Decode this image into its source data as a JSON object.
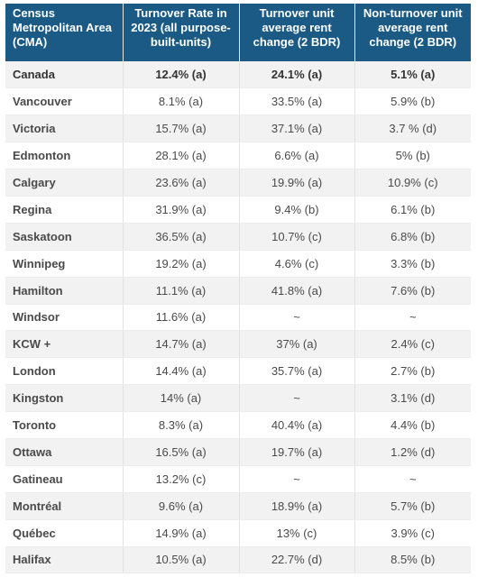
{
  "table": {
    "headers": [
      "Census Metropolitan Area (CMA)",
      "Turnover Rate in 2023 (all purpose-built-units)",
      "Turnover unit average rent change (2 BDR)",
      "Non-turnover unit average rent change (2 BDR)"
    ],
    "rows": [
      [
        "Canada",
        "12.4% (a)",
        "24.1% (a)",
        "5.1% (a)"
      ],
      [
        "Vancouver",
        "8.1% (a)",
        "33.5% (a)",
        "5.9% (b)"
      ],
      [
        "Victoria",
        "15.7% (a)",
        "37.1% (a)",
        "3.7 % (d)"
      ],
      [
        "Edmonton",
        "28.1% (a)",
        "6.6% (a)",
        "5% (b)"
      ],
      [
        "Calgary",
        "23.6% (a)",
        "19.9% (a)",
        "10.9% (c)"
      ],
      [
        "Regina",
        "31.9% (a)",
        "9.4% (b)",
        "6.1% (b)"
      ],
      [
        "Saskatoon",
        "36.5% (a)",
        "10.7% (c)",
        "6.8% (b)"
      ],
      [
        "Winnipeg",
        "19.2% (a)",
        "4.6% (c)",
        "3.3% (b)"
      ],
      [
        "Hamilton",
        "11.1% (a)",
        "41.8% (a)",
        "7.6% (b)"
      ],
      [
        "Windsor",
        "11.6% (a)",
        "~",
        "~"
      ],
      [
        "KCW +",
        "14.7% (a)",
        "37% (a)",
        "2.4% (c)"
      ],
      [
        "London",
        "14.4% (a)",
        "35.7% (a)",
        "2.7% (b)"
      ],
      [
        "Kingston",
        "14% (a)",
        "~",
        "3.1% (d)"
      ],
      [
        "Toronto",
        "8.3% (a)",
        "40.4% (a)",
        "4.4% (b)"
      ],
      [
        "Ottawa",
        "16.5% (a)",
        "19.7% (a)",
        "1.2% (d)"
      ],
      [
        "Gatineau",
        "13.2% (c)",
        "~",
        "~"
      ],
      [
        "Montréal",
        "9.6% (a)",
        "18.9% (a)",
        "5.7% (b)"
      ],
      [
        "Québec",
        "14.9% (a)",
        "13% (c)",
        "3.9% (c)"
      ],
      [
        "Halifax",
        "10.5% (a)",
        "22.7% (d)",
        "8.5% (b)"
      ]
    ]
  },
  "colors": {
    "header_background": "#1b5a85",
    "header_text": "#ffffff",
    "row_stripe": "#f2f2f2"
  }
}
